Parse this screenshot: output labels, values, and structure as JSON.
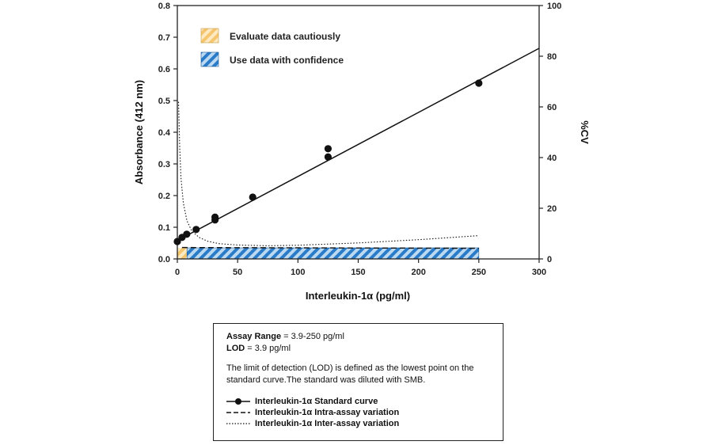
{
  "chart_data": {
    "type": "scatter",
    "xlabel": "Interleukin-1α (pg/ml)",
    "ylabel": "Absorbance (412 nm)",
    "y2label": "%CV",
    "xlim": [
      0,
      300
    ],
    "ylim": [
      0,
      0.8
    ],
    "y2lim": [
      0,
      100
    ],
    "x_ticks": [
      "0",
      "50",
      "100",
      "150",
      "200",
      "250",
      "300"
    ],
    "y_ticks": [
      "0.0",
      "0.1",
      "0.2",
      "0.3",
      "0.4",
      "0.5",
      "0.6",
      "0.7",
      "0.8"
    ],
    "y2_ticks": [
      "0",
      "20",
      "40",
      "60",
      "80",
      "100"
    ],
    "grid": false,
    "legend": [
      {
        "label": "Evaluate data cautiously",
        "pattern": "hatch",
        "color": "#f5c66e"
      },
      {
        "label": "Use data with confidence",
        "pattern": "hatch",
        "color": "#2a7bc8"
      }
    ],
    "series": [
      {
        "name": "Interleukin-1α Standard curve",
        "style": "points",
        "x": [
          0,
          3.9,
          7.8,
          15.6,
          31.25,
          31.25,
          62.5,
          125,
          125,
          250
        ],
        "y": [
          0.055,
          0.068,
          0.078,
          0.093,
          0.123,
          0.132,
          0.195,
          0.322,
          0.348,
          0.555
        ]
      },
      {
        "name": "Standard curve fit",
        "style": "line",
        "x": [
          0,
          300
        ],
        "y": [
          0.058,
          0.665
        ]
      },
      {
        "name": "Interleukin-1α Intra-assay variation",
        "style": "dashed",
        "axis": "y2",
        "x": [
          3.9,
          250
        ],
        "y": [
          4.5,
          4.2
        ]
      },
      {
        "name": "Interleukin-1α Inter-assay variation",
        "style": "dotted",
        "axis": "y2",
        "x": [
          1,
          2,
          3,
          5,
          8,
          12,
          18,
          25,
          35,
          50,
          75,
          100,
          150,
          200,
          250
        ],
        "y": [
          62,
          44,
          32,
          22,
          15,
          11,
          8.5,
          7,
          6,
          5.5,
          5.2,
          5.4,
          6.3,
          7.6,
          9.2
        ]
      }
    ],
    "regions": [
      {
        "name": "Evaluate data cautiously",
        "x": [
          0,
          8
        ],
        "y": [
          0,
          0.035
        ],
        "color": "#f5c66e"
      },
      {
        "name": "Use data with confidence",
        "x": [
          8,
          250
        ],
        "y": [
          0,
          0.035
        ],
        "color": "#2a7bc8"
      }
    ]
  },
  "info": {
    "assay_range_label": "Assay Range",
    "assay_range_value": " = 3.9-250 pg/ml",
    "lod_label": "LOD",
    "lod_value": " = 3.9 pg/ml",
    "description": "The limit of detection (LOD) is defined as the lowest point on the standard curve.The standard was diluted with SMB.",
    "legend": [
      "Interleukin-1α Standard curve",
      "Interleukin-1α Intra-assay variation",
      "Interleukin-1α Inter-assay variation"
    ]
  }
}
